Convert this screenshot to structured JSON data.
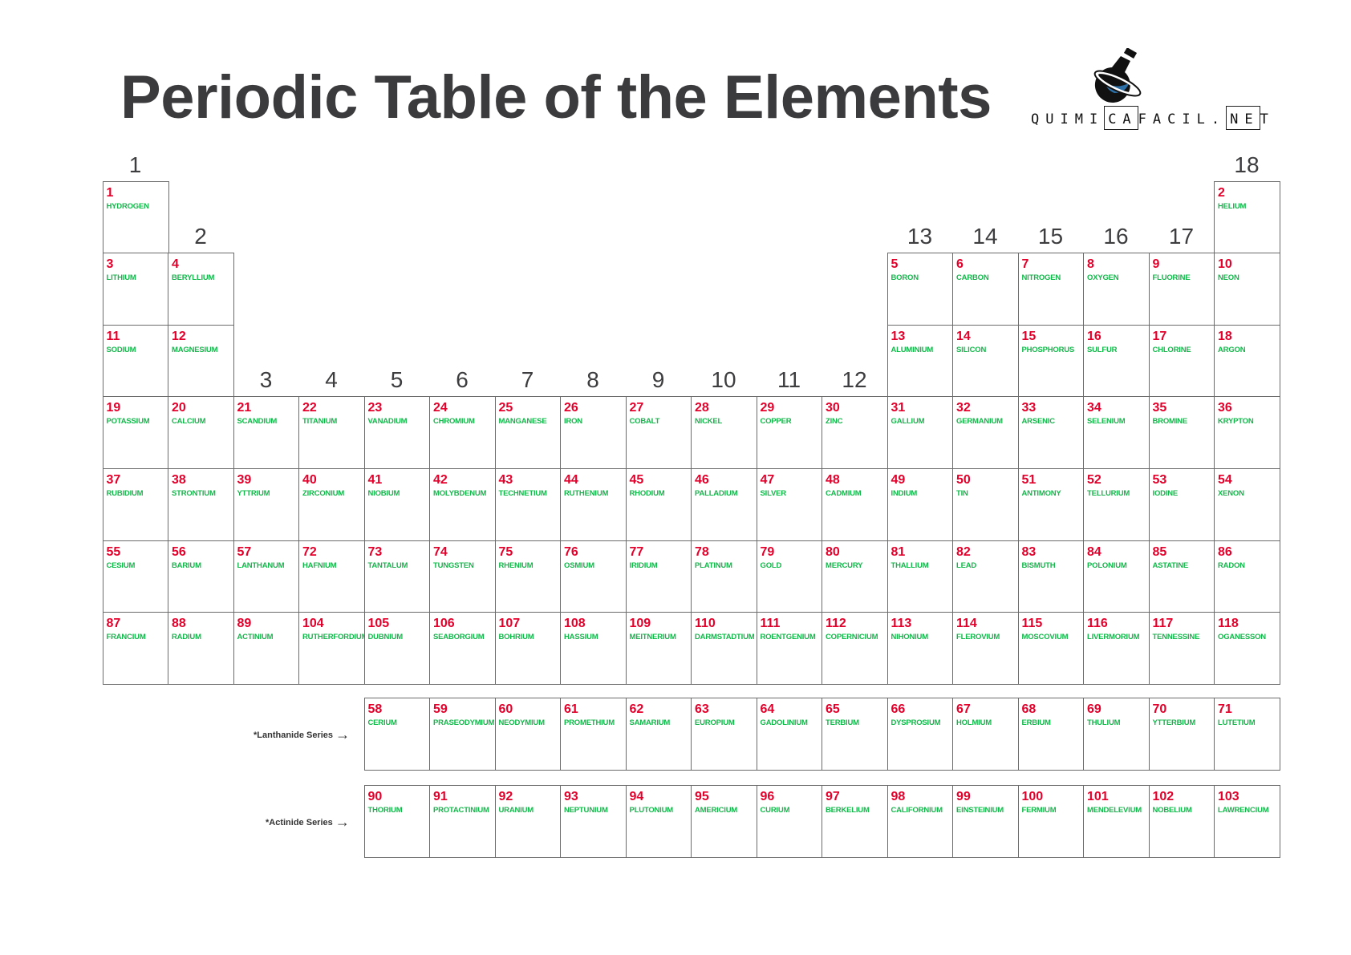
{
  "title": "Periodic Table of the Elements",
  "logo": {
    "text": "QUIMICAFACIL.NET",
    "box1_sup": "20",
    "box2_sup": "10"
  },
  "colors": {
    "number": "#e3002a",
    "name": "#12b84a",
    "border": "#6b6b6b",
    "title": "#3b3b3e"
  },
  "groups": [
    "1",
    "2",
    "3",
    "4",
    "5",
    "6",
    "7",
    "8",
    "9",
    "10",
    "11",
    "12",
    "13",
    "14",
    "15",
    "16",
    "17",
    "18"
  ],
  "series_labels": {
    "lanthanide": "*Lanthanide Series",
    "actinide": "*Actinide Series",
    "arrow_icon": "arrow-right-icon"
  },
  "elements": [
    [
      1,
      "HYDROGEN",
      1,
      1
    ],
    [
      2,
      "HELIUM",
      1,
      18
    ],
    [
      3,
      "LITHIUM",
      2,
      1
    ],
    [
      4,
      "BERYLLIUM",
      2,
      2
    ],
    [
      5,
      "BORON",
      2,
      13
    ],
    [
      6,
      "CARBON",
      2,
      14
    ],
    [
      7,
      "NITROGEN",
      2,
      15
    ],
    [
      8,
      "OXYGEN",
      2,
      16
    ],
    [
      9,
      "FLUORINE",
      2,
      17
    ],
    [
      10,
      "NEON",
      2,
      18
    ],
    [
      11,
      "SODIUM",
      3,
      1
    ],
    [
      12,
      "MAGNESIUM",
      3,
      2
    ],
    [
      13,
      "ALUMINIUM",
      3,
      13
    ],
    [
      14,
      "SILICON",
      3,
      14
    ],
    [
      15,
      "PHOSPHORUS",
      3,
      15
    ],
    [
      16,
      "SULFUR",
      3,
      16
    ],
    [
      17,
      "CHLORINE",
      3,
      17
    ],
    [
      18,
      "ARGON",
      3,
      18
    ],
    [
      19,
      "POTASSIUM",
      4,
      1
    ],
    [
      20,
      "CALCIUM",
      4,
      2
    ],
    [
      21,
      "SCANDIUM",
      4,
      3
    ],
    [
      22,
      "TITANIUM",
      4,
      4
    ],
    [
      23,
      "VANADIUM",
      4,
      5
    ],
    [
      24,
      "CHROMIUM",
      4,
      6
    ],
    [
      25,
      "MANGANESE",
      4,
      7
    ],
    [
      26,
      "IRON",
      4,
      8
    ],
    [
      27,
      "COBALT",
      4,
      9
    ],
    [
      28,
      "NICKEL",
      4,
      10
    ],
    [
      29,
      "COPPER",
      4,
      11
    ],
    [
      30,
      "ZINC",
      4,
      12
    ],
    [
      31,
      "GALLIUM",
      4,
      13
    ],
    [
      32,
      "GERMANIUM",
      4,
      14
    ],
    [
      33,
      "ARSENIC",
      4,
      15
    ],
    [
      34,
      "SELENIUM",
      4,
      16
    ],
    [
      35,
      "BROMINE",
      4,
      17
    ],
    [
      36,
      "KRYPTON",
      4,
      18
    ],
    [
      37,
      "RUBIDIUM",
      5,
      1
    ],
    [
      38,
      "STRONTIUM",
      5,
      2
    ],
    [
      39,
      "YTTRIUM",
      5,
      3
    ],
    [
      40,
      "ZIRCONIUM",
      5,
      4
    ],
    [
      41,
      "NIOBIUM",
      5,
      5
    ],
    [
      42,
      "MOLYBDENUM",
      5,
      6
    ],
    [
      43,
      "TECHNETIUM",
      5,
      7
    ],
    [
      44,
      "RUTHENIUM",
      5,
      8
    ],
    [
      45,
      "RHODIUM",
      5,
      9
    ],
    [
      46,
      "PALLADIUM",
      5,
      10
    ],
    [
      47,
      "SILVER",
      5,
      11
    ],
    [
      48,
      "CADMIUM",
      5,
      12
    ],
    [
      49,
      "INDIUM",
      5,
      13
    ],
    [
      50,
      "TIN",
      5,
      14
    ],
    [
      51,
      "ANTIMONY",
      5,
      15
    ],
    [
      52,
      "TELLURIUM",
      5,
      16
    ],
    [
      53,
      "IODINE",
      5,
      17
    ],
    [
      54,
      "XENON",
      5,
      18
    ],
    [
      55,
      "CESIUM",
      6,
      1
    ],
    [
      56,
      "BARIUM",
      6,
      2
    ],
    [
      57,
      "LANTHANUM",
      6,
      3
    ],
    [
      72,
      "HAFNIUM",
      6,
      4
    ],
    [
      73,
      "TANTALUM",
      6,
      5
    ],
    [
      74,
      "TUNGSTEN",
      6,
      6
    ],
    [
      75,
      "RHENIUM",
      6,
      7
    ],
    [
      76,
      "OSMIUM",
      6,
      8
    ],
    [
      77,
      "IRIDIUM",
      6,
      9
    ],
    [
      78,
      "PLATINUM",
      6,
      10
    ],
    [
      79,
      "GOLD",
      6,
      11
    ],
    [
      80,
      "MERCURY",
      6,
      12
    ],
    [
      81,
      "THALLIUM",
      6,
      13
    ],
    [
      82,
      "LEAD",
      6,
      14
    ],
    [
      83,
      "BISMUTH",
      6,
      15
    ],
    [
      84,
      "POLONIUM",
      6,
      16
    ],
    [
      85,
      "ASTATINE",
      6,
      17
    ],
    [
      86,
      "RADON",
      6,
      18
    ],
    [
      87,
      "FRANCIUM",
      7,
      1
    ],
    [
      88,
      "RADIUM",
      7,
      2
    ],
    [
      89,
      "ACTINIUM",
      7,
      3
    ],
    [
      104,
      "RUTHERFORDIUM",
      7,
      4
    ],
    [
      105,
      "DUBNIUM",
      7,
      5
    ],
    [
      106,
      "SEABORGIUM",
      7,
      6
    ],
    [
      107,
      "BOHRIUM",
      7,
      7
    ],
    [
      108,
      "HASSIUM",
      7,
      8
    ],
    [
      109,
      "MEITNERIUM",
      7,
      9
    ],
    [
      110,
      "DARMSTADTIUM",
      7,
      10
    ],
    [
      111,
      "ROENTGENIUM",
      7,
      11
    ],
    [
      112,
      "COPERNICIUM",
      7,
      12
    ],
    [
      113,
      "NIHONIUM",
      7,
      13
    ],
    [
      114,
      "FLEROVIUM",
      7,
      14
    ],
    [
      115,
      "MOSCOVIUM",
      7,
      15
    ],
    [
      116,
      "LIVERMORIUM",
      7,
      16
    ],
    [
      117,
      "TENNESSINE",
      7,
      17
    ],
    [
      118,
      "OGANESSON",
      7,
      18
    ]
  ],
  "lanthanides": [
    [
      58,
      "CERIUM"
    ],
    [
      59,
      "PRASEODYMIUM"
    ],
    [
      60,
      "NEODYMIUM"
    ],
    [
      61,
      "PROMETHIUM"
    ],
    [
      62,
      "SAMARIUM"
    ],
    [
      63,
      "EUROPIUM"
    ],
    [
      64,
      "GADOLINIUM"
    ],
    [
      65,
      "TERBIUM"
    ],
    [
      66,
      "DYSPROSIUM"
    ],
    [
      67,
      "HOLMIUM"
    ],
    [
      68,
      "ERBIUM"
    ],
    [
      69,
      "THULIUM"
    ],
    [
      70,
      "YTTERBIUM"
    ],
    [
      71,
      "LUTETIUM"
    ]
  ],
  "actinides": [
    [
      90,
      "THORIUM"
    ],
    [
      91,
      "PROTACTINIUM"
    ],
    [
      92,
      "URANIUM"
    ],
    [
      93,
      "NEPTUNIUM"
    ],
    [
      94,
      "PLUTONIUM"
    ],
    [
      95,
      "AMERICIUM"
    ],
    [
      96,
      "CURIUM"
    ],
    [
      97,
      "BERKELIUM"
    ],
    [
      98,
      "CALIFORNIUM"
    ],
    [
      99,
      "EINSTEINIUM"
    ],
    [
      100,
      "FERMIUM"
    ],
    [
      101,
      "MENDELEVIUM"
    ],
    [
      102,
      "NOBELIUM"
    ],
    [
      103,
      "LAWRENCIUM"
    ]
  ]
}
